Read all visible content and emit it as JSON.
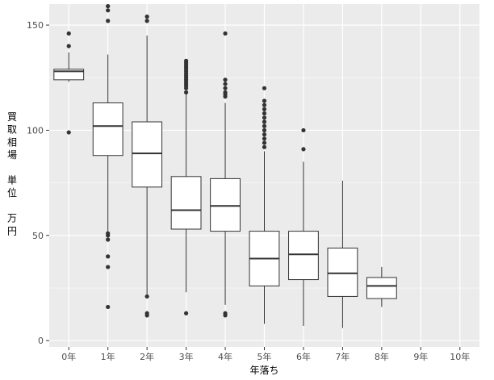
{
  "chart_data": {
    "type": "boxplot",
    "title": "",
    "xlabel": "年落ち",
    "ylabel_lines": [
      "買",
      "取",
      "相",
      "場",
      "",
      "単",
      "位",
      "",
      "万",
      "円"
    ],
    "ylim": [
      -3,
      160
    ],
    "y_ticks": [
      0,
      50,
      100,
      150
    ],
    "categories": [
      "0年",
      "1年",
      "2年",
      "3年",
      "4年",
      "5年",
      "6年",
      "7年",
      "8年",
      "9年",
      "10年"
    ],
    "boxes": [
      {
        "category": "0年",
        "whisker_low": 123,
        "q1": 124,
        "median": 128,
        "q3": 129,
        "whisker_high": 137,
        "outliers": [
          99,
          140,
          146
        ]
      },
      {
        "category": "1年",
        "whisker_low": 52,
        "q1": 88,
        "median": 102,
        "q3": 113,
        "whisker_high": 136,
        "outliers": [
          16,
          35,
          40,
          48,
          50,
          51,
          152,
          157,
          159
        ]
      },
      {
        "category": "2年",
        "whisker_low": 22,
        "q1": 73,
        "median": 89,
        "q3": 104,
        "whisker_high": 145,
        "outliers": [
          12,
          13,
          21,
          152,
          154
        ]
      },
      {
        "category": "3年",
        "whisker_low": 23,
        "q1": 53,
        "median": 62,
        "q3": 78,
        "whisker_high": 117,
        "outliers": [
          13,
          118,
          120,
          121,
          122,
          123,
          124,
          125,
          126,
          127,
          128,
          129,
          130,
          131,
          132,
          133
        ]
      },
      {
        "category": "4年",
        "whisker_low": 17,
        "q1": 52,
        "median": 64,
        "q3": 77,
        "whisker_high": 113,
        "outliers": [
          12,
          13,
          116,
          117,
          118,
          120,
          122,
          124,
          146
        ]
      },
      {
        "category": "5年",
        "whisker_low": 8,
        "q1": 26,
        "median": 39,
        "q3": 52,
        "whisker_high": 90,
        "outliers": [
          92,
          94,
          96,
          98,
          100,
          102,
          104,
          106,
          108,
          110,
          112,
          114,
          120
        ]
      },
      {
        "category": "6年",
        "whisker_low": 7,
        "q1": 29,
        "median": 41,
        "q3": 52,
        "whisker_high": 85,
        "outliers": [
          91,
          100
        ]
      },
      {
        "category": "7年",
        "whisker_low": 6,
        "q1": 21,
        "median": 32,
        "q3": 44,
        "whisker_high": 76,
        "outliers": []
      },
      {
        "category": "8年",
        "whisker_low": 16,
        "q1": 20,
        "median": 26,
        "q3": 30,
        "whisker_high": 35,
        "outliers": []
      }
    ],
    "colors": {
      "panel_background": "#ebebeb",
      "grid_line": "#ffffff",
      "box_fill": "#ffffff",
      "box_stroke": "#333333",
      "tick_text": "#4d4d4d",
      "title_text": "#000000"
    },
    "grid": true,
    "legend": "none"
  }
}
